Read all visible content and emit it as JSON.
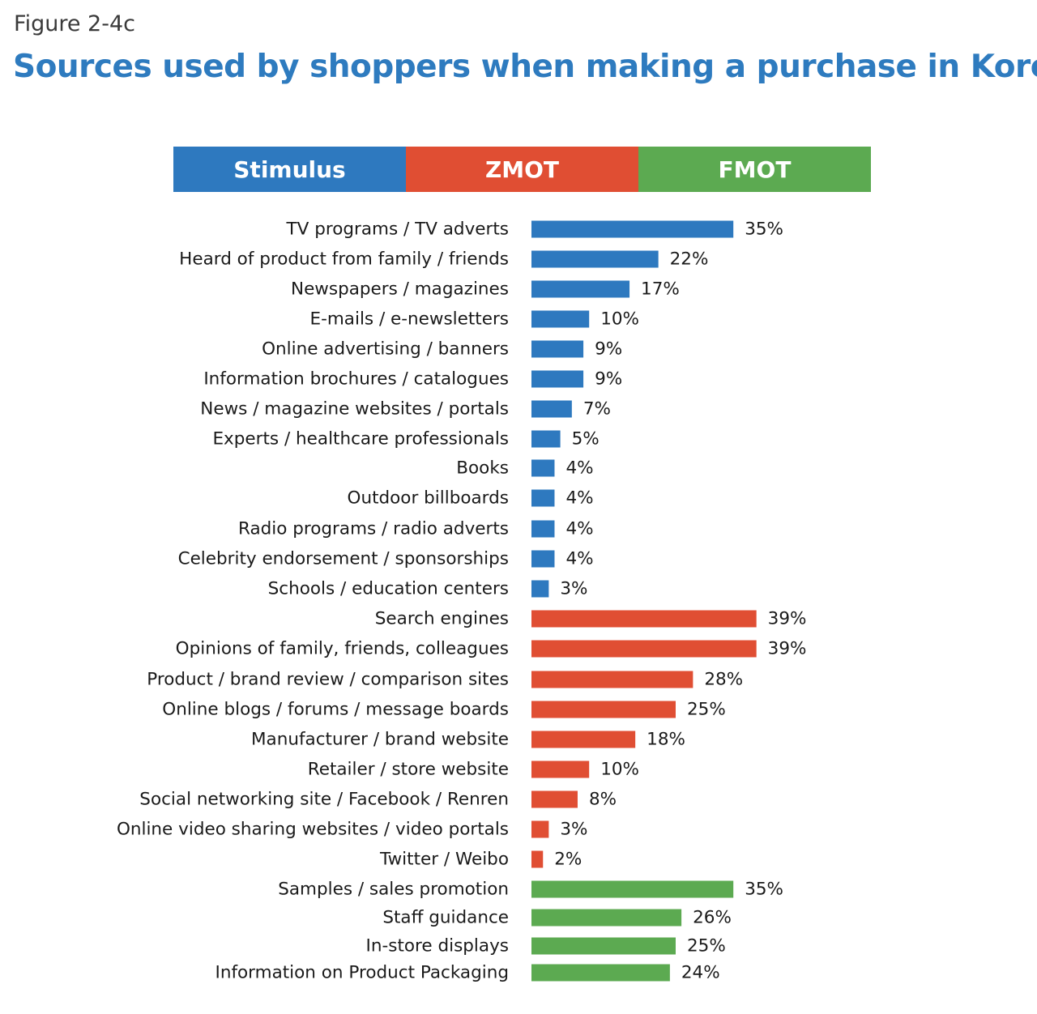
{
  "figure_label": "Figure 2-4c",
  "title": "Sources used by shoppers when making a purchase in Korea",
  "colors": {
    "Stimulus": "#2e79bf",
    "ZMOT": "#e04e33",
    "FMOT": "#5caa51"
  },
  "legend": [
    {
      "label": "Stimulus",
      "color": "#2e79bf"
    },
    {
      "label": "ZMOT",
      "color": "#e04e33"
    },
    {
      "label": "FMOT",
      "color": "#5caa51"
    }
  ],
  "chart_data": {
    "type": "bar",
    "orientation": "horizontal",
    "title": "Sources used by shoppers when making a purchase in Korea",
    "xlabel": "",
    "ylabel": "",
    "unit": "%",
    "xlim": [
      0,
      40
    ],
    "categories": [
      "TV programs / TV adverts",
      "Heard of product from family / friends",
      "Newspapers / magazines",
      "E-mails / e-newsletters",
      "Online advertising / banners",
      "Information brochures / catalogues",
      "News / magazine websites / portals",
      "Experts / healthcare professionals",
      "Books",
      "Outdoor billboards",
      "Radio programs / radio adverts",
      "Celebrity endorsement / sponsorships",
      "Schools / education centers",
      "Search engines",
      "Opinions of family, friends, colleagues",
      "Product / brand review / comparison sites",
      "Online blogs / forums / message boards",
      "Manufacturer / brand website",
      "Retailer / store website",
      "Social networking site / Facebook / Renren",
      "Online video sharing websites / video portals",
      "Twitter / Weibo",
      "Samples / sales promotion",
      "Staff guidance",
      "In-store displays",
      "Information on Product Packaging"
    ],
    "values": [
      35,
      22,
      17,
      10,
      9,
      9,
      7,
      5,
      4,
      4,
      4,
      4,
      3,
      39,
      39,
      28,
      25,
      18,
      10,
      8,
      3,
      2,
      35,
      26,
      25,
      24
    ],
    "value_labels": [
      "35%",
      "22%",
      "17%",
      "10%",
      "9%",
      "9%",
      "7%",
      "5%",
      "4%",
      "4%",
      "4%",
      "4%",
      "3%",
      "39%",
      "39%",
      "28%",
      "25%",
      "18%",
      "10%",
      "8%",
      "3%",
      "2%",
      "35%",
      "26%",
      "25%",
      "24%"
    ],
    "groups": [
      "Stimulus",
      "Stimulus",
      "Stimulus",
      "Stimulus",
      "Stimulus",
      "Stimulus",
      "Stimulus",
      "Stimulus",
      "Stimulus",
      "Stimulus",
      "Stimulus",
      "Stimulus",
      "Stimulus",
      "ZMOT",
      "ZMOT",
      "ZMOT",
      "ZMOT",
      "ZMOT",
      "ZMOT",
      "ZMOT",
      "ZMOT",
      "ZMOT",
      "FMOT",
      "FMOT",
      "FMOT",
      "FMOT"
    ],
    "legend": [
      "Stimulus",
      "ZMOT",
      "FMOT"
    ],
    "legend_position": "top",
    "grid": false
  }
}
